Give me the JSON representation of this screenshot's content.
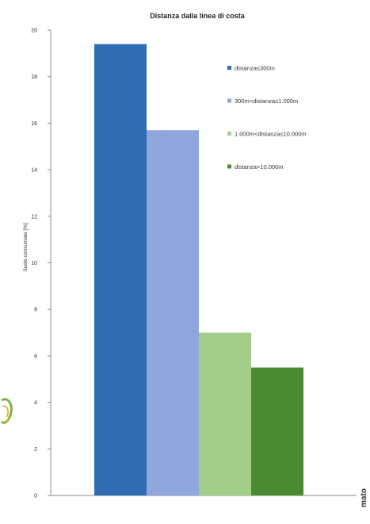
{
  "chart_data": {
    "type": "bar",
    "title": "Distanza dalla linea di costa",
    "xlabel": "",
    "ylabel": "Suolo consumato [%]",
    "ylim": [
      0,
      20
    ],
    "yticks": [
      0,
      2,
      4,
      6,
      8,
      10,
      12,
      14,
      16,
      18,
      20
    ],
    "grid": false,
    "legend_position": "right",
    "series": [
      {
        "name": "distanza≤300m",
        "color": "#2e6db4",
        "values": [
          19.4
        ]
      },
      {
        "name": "300m<distanza≤1.000m",
        "color": "#8fa7dc",
        "values": [
          15.7
        ]
      },
      {
        "name": "1.000m<distanza≤10.000m",
        "color": "#a3ce8a",
        "values": [
          7.0
        ]
      },
      {
        "name": "distanza>10.000m",
        "color": "#4a8a33",
        "values": [
          5.5
        ]
      }
    ]
  },
  "edge_text": "mato"
}
